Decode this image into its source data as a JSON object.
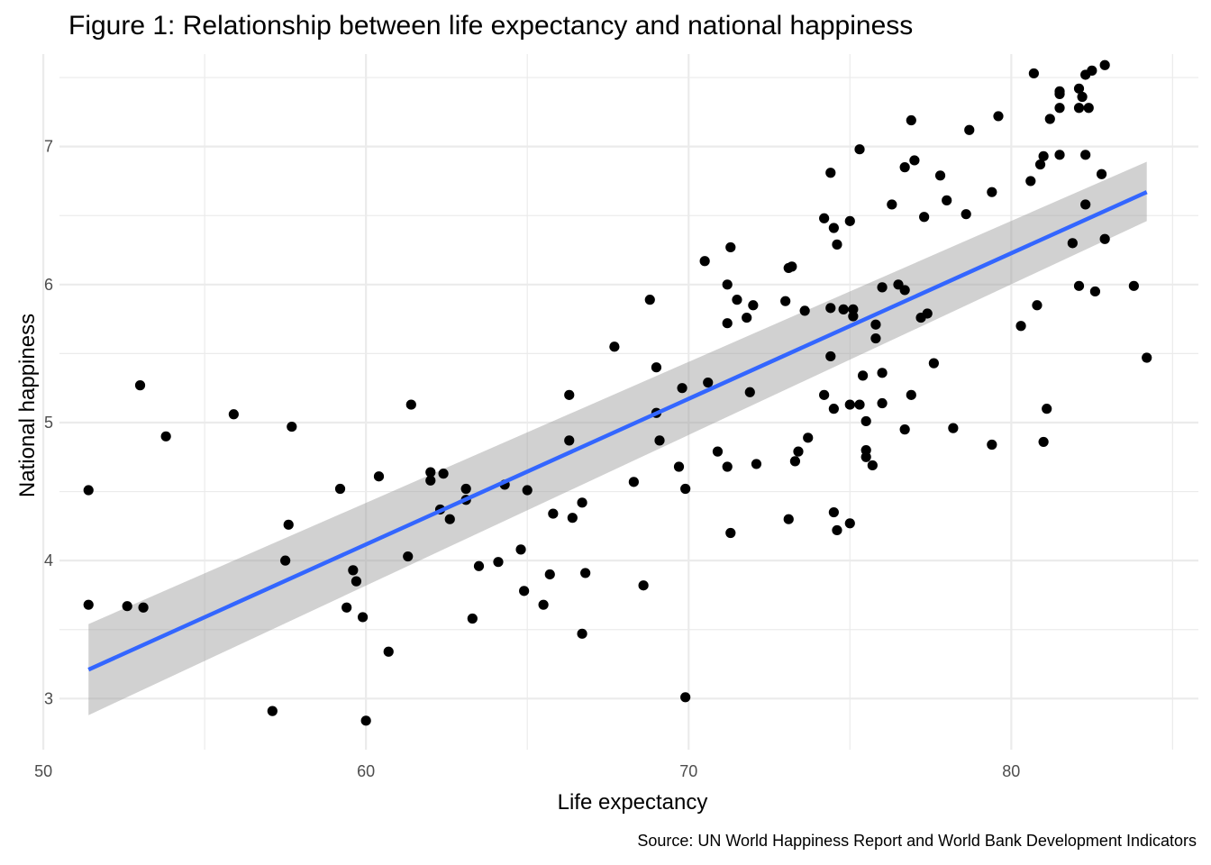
{
  "chart_data": {
    "type": "scatter",
    "title": "Figure 1: Relationship between life expectancy and national happiness",
    "xlabel": "Life expectancy",
    "ylabel": "National happiness",
    "caption": "Source: UN World Happiness Report and World Bank Development Indicators",
    "xlim": [
      50.5,
      85.8
    ],
    "ylim": [
      2.63,
      7.67
    ],
    "x_ticks": [
      50,
      60,
      70,
      80
    ],
    "x_tick_labels": [
      "50",
      "60",
      "70",
      "80"
    ],
    "y_ticks": [
      3,
      4,
      5,
      6,
      7
    ],
    "y_tick_labels": [
      "3",
      "4",
      "5",
      "6",
      "7"
    ],
    "grid": true,
    "legend": "none",
    "colors": {
      "points": "#000000",
      "fit_line": "#3366ff",
      "confidence_band": "#999999",
      "grid": "#ebebeb"
    },
    "points": [
      [
        51.4,
        4.51
      ],
      [
        51.4,
        3.68
      ],
      [
        52.6,
        3.67
      ],
      [
        53.0,
        5.27
      ],
      [
        53.1,
        3.66
      ],
      [
        53.8,
        4.9
      ],
      [
        55.9,
        5.06
      ],
      [
        57.1,
        2.91
      ],
      [
        57.5,
        4.0
      ],
      [
        57.6,
        4.26
      ],
      [
        57.7,
        4.97
      ],
      [
        59.2,
        4.52
      ],
      [
        59.4,
        3.66
      ],
      [
        59.6,
        3.93
      ],
      [
        59.7,
        3.85
      ],
      [
        59.9,
        3.59
      ],
      [
        60.0,
        2.84
      ],
      [
        60.4,
        4.61
      ],
      [
        60.7,
        3.34
      ],
      [
        61.3,
        4.03
      ],
      [
        61.4,
        5.13
      ],
      [
        62.0,
        4.58
      ],
      [
        62.0,
        4.64
      ],
      [
        62.3,
        4.37
      ],
      [
        62.4,
        4.63
      ],
      [
        62.6,
        4.3
      ],
      [
        63.1,
        4.44
      ],
      [
        63.1,
        4.52
      ],
      [
        63.3,
        3.58
      ],
      [
        63.5,
        3.96
      ],
      [
        64.1,
        3.99
      ],
      [
        64.3,
        4.55
      ],
      [
        64.8,
        4.08
      ],
      [
        64.9,
        3.78
      ],
      [
        65.0,
        4.51
      ],
      [
        65.5,
        3.68
      ],
      [
        65.7,
        3.9
      ],
      [
        65.8,
        4.34
      ],
      [
        66.3,
        5.2
      ],
      [
        66.3,
        4.87
      ],
      [
        66.4,
        4.31
      ],
      [
        66.7,
        4.42
      ],
      [
        66.7,
        3.47
      ],
      [
        66.8,
        3.91
      ],
      [
        67.7,
        5.55
      ],
      [
        68.3,
        4.57
      ],
      [
        68.6,
        3.82
      ],
      [
        68.8,
        5.89
      ],
      [
        69.0,
        5.07
      ],
      [
        69.0,
        5.4
      ],
      [
        69.1,
        4.87
      ],
      [
        69.7,
        4.68
      ],
      [
        69.8,
        5.25
      ],
      [
        69.9,
        4.52
      ],
      [
        69.9,
        3.01
      ],
      [
        70.5,
        6.17
      ],
      [
        70.6,
        5.29
      ],
      [
        70.9,
        4.79
      ],
      [
        71.2,
        6.0
      ],
      [
        71.2,
        5.72
      ],
      [
        71.2,
        4.68
      ],
      [
        71.3,
        6.27
      ],
      [
        71.3,
        4.2
      ],
      [
        71.5,
        5.89
      ],
      [
        71.8,
        5.76
      ],
      [
        71.9,
        5.22
      ],
      [
        72.0,
        5.85
      ],
      [
        72.1,
        4.7
      ],
      [
        73.0,
        5.88
      ],
      [
        73.1,
        4.3
      ],
      [
        73.1,
        6.12
      ],
      [
        73.2,
        6.13
      ],
      [
        73.3,
        4.72
      ],
      [
        73.4,
        4.79
      ],
      [
        73.6,
        5.81
      ],
      [
        73.7,
        4.89
      ],
      [
        74.2,
        6.48
      ],
      [
        74.2,
        5.2
      ],
      [
        74.4,
        6.81
      ],
      [
        74.4,
        5.83
      ],
      [
        74.4,
        5.48
      ],
      [
        74.5,
        6.41
      ],
      [
        74.5,
        4.35
      ],
      [
        74.5,
        5.1
      ],
      [
        74.6,
        6.29
      ],
      [
        74.6,
        4.22
      ],
      [
        74.8,
        5.82
      ],
      [
        75.0,
        5.13
      ],
      [
        75.0,
        6.46
      ],
      [
        75.0,
        4.27
      ],
      [
        75.1,
        5.82
      ],
      [
        75.1,
        5.77
      ],
      [
        75.3,
        6.98
      ],
      [
        75.3,
        5.13
      ],
      [
        75.4,
        5.34
      ],
      [
        75.5,
        5.01
      ],
      [
        75.5,
        4.8
      ],
      [
        75.5,
        4.75
      ],
      [
        75.7,
        4.69
      ],
      [
        75.8,
        5.71
      ],
      [
        75.8,
        5.61
      ],
      [
        76.0,
        5.98
      ],
      [
        76.0,
        5.36
      ],
      [
        76.0,
        5.14
      ],
      [
        76.3,
        6.58
      ],
      [
        76.5,
        6.0
      ],
      [
        76.7,
        6.85
      ],
      [
        76.7,
        5.96
      ],
      [
        76.7,
        4.95
      ],
      [
        76.9,
        7.19
      ],
      [
        76.9,
        5.2
      ],
      [
        77.0,
        6.9
      ],
      [
        77.2,
        5.76
      ],
      [
        77.3,
        6.49
      ],
      [
        77.4,
        5.79
      ],
      [
        77.6,
        5.43
      ],
      [
        77.8,
        6.79
      ],
      [
        78.0,
        6.61
      ],
      [
        78.2,
        4.96
      ],
      [
        78.6,
        6.51
      ],
      [
        78.7,
        7.12
      ],
      [
        79.4,
        6.67
      ],
      [
        79.4,
        4.84
      ],
      [
        79.6,
        7.22
      ],
      [
        80.3,
        5.7
      ],
      [
        80.6,
        6.75
      ],
      [
        80.7,
        7.53
      ],
      [
        80.8,
        5.85
      ],
      [
        80.9,
        6.87
      ],
      [
        81.0,
        6.93
      ],
      [
        81.0,
        4.86
      ],
      [
        81.1,
        5.1
      ],
      [
        81.2,
        7.2
      ],
      [
        81.5,
        7.28
      ],
      [
        81.5,
        7.38
      ],
      [
        81.5,
        7.4
      ],
      [
        81.5,
        6.94
      ],
      [
        81.9,
        6.3
      ],
      [
        82.1,
        5.99
      ],
      [
        82.1,
        7.28
      ],
      [
        82.1,
        7.42
      ],
      [
        82.2,
        7.36
      ],
      [
        82.3,
        7.52
      ],
      [
        82.3,
        6.94
      ],
      [
        82.3,
        6.58
      ],
      [
        82.4,
        7.28
      ],
      [
        82.5,
        7.55
      ],
      [
        82.6,
        5.95
      ],
      [
        82.8,
        6.8
      ],
      [
        82.9,
        6.33
      ],
      [
        82.9,
        7.59
      ],
      [
        83.8,
        5.99
      ],
      [
        84.2,
        5.47
      ]
    ],
    "fit": {
      "x": [
        51.4,
        84.2
      ],
      "y": [
        3.21,
        6.67
      ],
      "band_upper": [
        3.54,
        6.89
      ],
      "band_lower": [
        2.88,
        6.46
      ]
    }
  }
}
